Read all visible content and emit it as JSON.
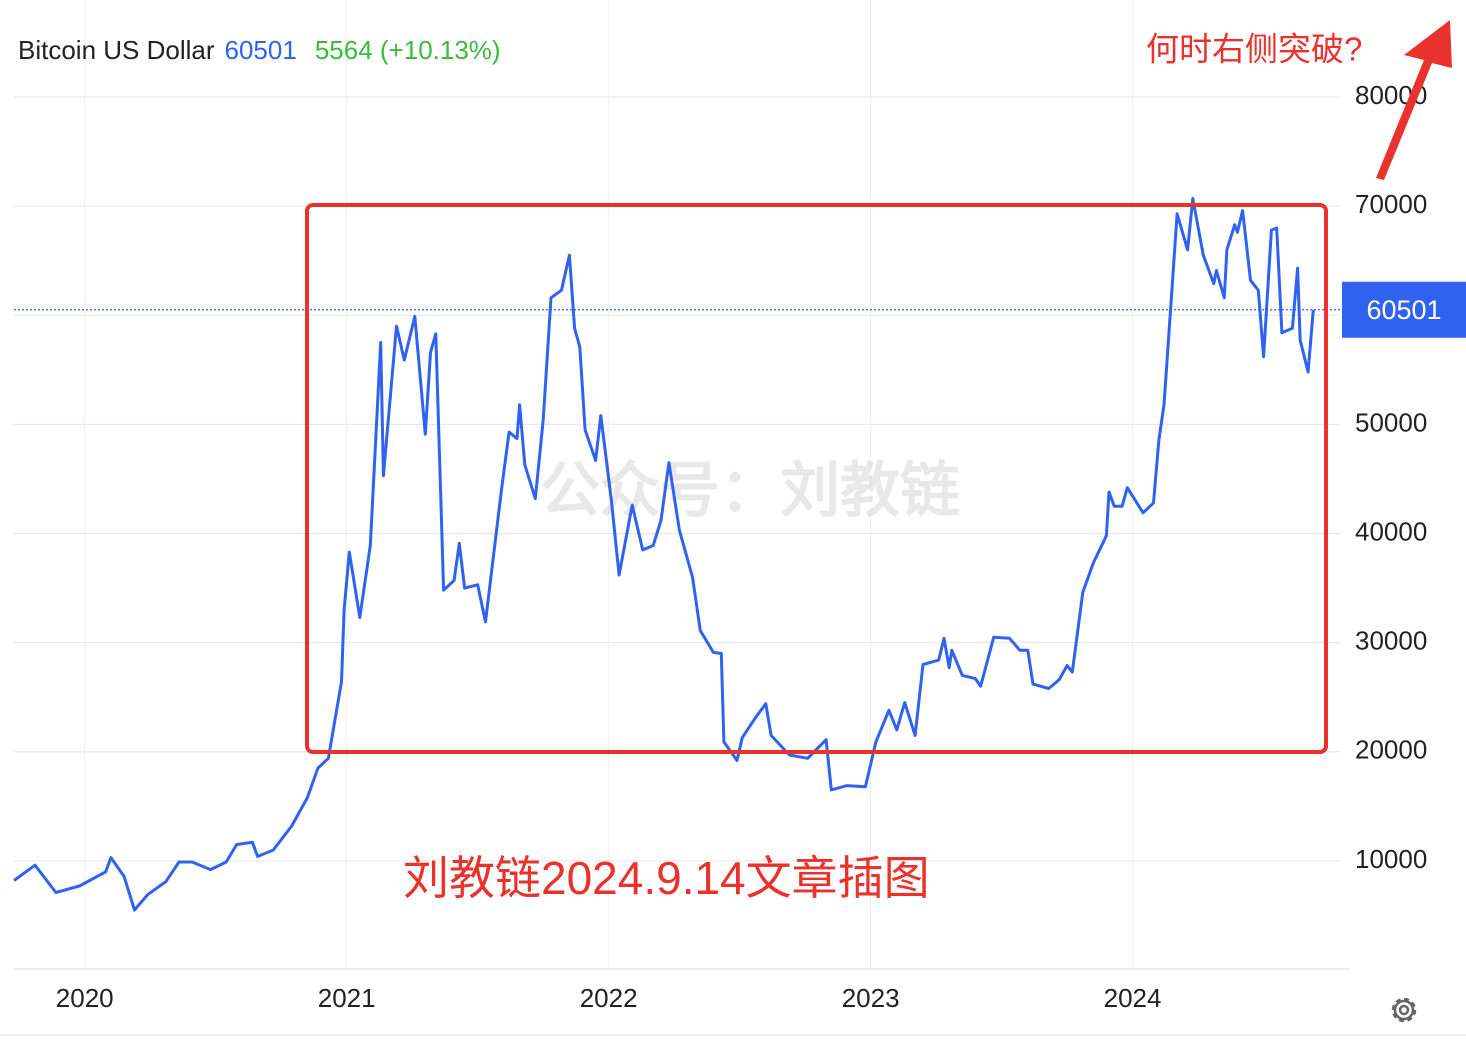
{
  "chart_data": {
    "type": "line",
    "title": "Bitcoin US Dollar",
    "current_price": 60501,
    "change_label": "5564 (+10.13%)",
    "annotations": [
      "何时右侧突破?",
      "刘教链2024.9.14文章插图",
      "公众号：刘教链"
    ],
    "color": "#2f63ef",
    "x": [
      2019.73,
      2019.81,
      2019.89,
      2019.98,
      2020.08,
      2020.1,
      2020.15,
      2020.19,
      2020.24,
      2020.31,
      2020.36,
      2020.41,
      2020.48,
      2020.54,
      2020.58,
      2020.64,
      2020.66,
      2020.72,
      2020.79,
      2020.85,
      2020.89,
      2020.93,
      2020.96,
      2020.98,
      2020.99,
      2021.01,
      2021.05,
      2021.09,
      2021.13,
      2021.14,
      2021.19,
      2021.22,
      2021.26,
      2021.3,
      2021.32,
      2021.34,
      2021.37,
      2021.41,
      2021.43,
      2021.45,
      2021.5,
      2021.53,
      2021.59,
      2021.62,
      2021.65,
      2021.66,
      2021.68,
      2021.72,
      2021.75,
      2021.78,
      2021.82,
      2021.85,
      2021.87,
      2021.89,
      2021.91,
      2021.95,
      2021.97,
      2022.01,
      2022.04,
      2022.09,
      2022.13,
      2022.17,
      2022.2,
      2022.23,
      2022.27,
      2022.32,
      2022.35,
      2022.4,
      2022.43,
      2022.44,
      2022.49,
      2022.51,
      2022.56,
      2022.6,
      2022.62,
      2022.69,
      2022.76,
      2022.83,
      2022.85,
      2022.91,
      2022.98,
      2023.02,
      2023.07,
      2023.1,
      2023.13,
      2023.17,
      2023.2,
      2023.26,
      2023.28,
      2023.3,
      2023.31,
      2023.35,
      2023.4,
      2023.42,
      2023.47,
      2023.53,
      2023.57,
      2023.6,
      2023.62,
      2023.68,
      2023.72,
      2023.75,
      2023.77,
      2023.81,
      2023.85,
      2023.9,
      2023.91,
      2023.93,
      2023.96,
      2023.98,
      2024.04,
      2024.08,
      2024.1,
      2024.12,
      2024.15,
      2024.17,
      2024.21,
      2024.23,
      2024.27,
      2024.31,
      2024.32,
      2024.35,
      2024.36,
      2024.39,
      2024.4,
      2024.42,
      2024.45,
      2024.48,
      2024.5,
      2024.53,
      2024.55,
      2024.57,
      2024.61,
      2024.63,
      2024.64,
      2024.67,
      2024.69
    ],
    "values": [
      8200,
      9600,
      7100,
      7700,
      9000,
      10300,
      8600,
      5500,
      6900,
      8100,
      9900,
      9900,
      9200,
      9900,
      11500,
      11700,
      10400,
      11000,
      13200,
      15800,
      18500,
      19400,
      23600,
      26400,
      33000,
      38300,
      32300,
      38900,
      57500,
      45300,
      59000,
      55900,
      59900,
      49100,
      56600,
      58300,
      34800,
      35700,
      39100,
      35000,
      35300,
      31900,
      43800,
      49300,
      48700,
      51800,
      46300,
      43200,
      50400,
      61600,
      62300,
      65500,
      58800,
      57100,
      49500,
      46700,
      50800,
      43100,
      36200,
      42600,
      38500,
      38900,
      41200,
      46500,
      40300,
      36000,
      31100,
      29100,
      29000,
      20900,
      19200,
      21300,
      23100,
      24400,
      21500,
      19700,
      19400,
      21100,
      16500,
      16900,
      16800,
      20900,
      23800,
      22000,
      24500,
      21500,
      28000,
      28400,
      30400,
      27700,
      29300,
      27000,
      26700,
      26000,
      30500,
      30400,
      29300,
      29300,
      26200,
      25800,
      26600,
      27900,
      27300,
      34600,
      37300,
      39800,
      43800,
      42500,
      42500,
      44200,
      41900,
      42800,
      48500,
      51800,
      62300,
      69300,
      66000,
      70700,
      65500,
      62900,
      64100,
      61600,
      66000,
      68300,
      67600,
      69600,
      63200,
      62300,
      56200,
      67800,
      68000,
      58400,
      58800,
      64300,
      57700,
      54800,
      60501
    ],
    "xlim": [
      2019.73,
      2024.83
    ],
    "xticks": [
      2020,
      2021,
      2022,
      2023,
      2024
    ],
    "ylim": [
      0,
      80000
    ],
    "yticks": [
      10000,
      20000,
      30000,
      40000,
      50000,
      60000,
      70000,
      80000
    ],
    "grid": true
  }
}
